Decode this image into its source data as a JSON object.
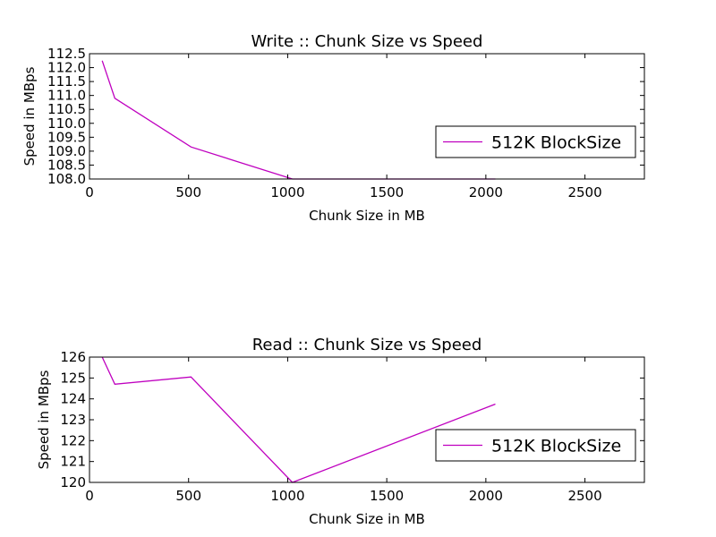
{
  "chart_data": [
    {
      "type": "line",
      "title": "Write :: Chunk Size vs Speed",
      "xlabel": "Chunk Size in MB",
      "ylabel": "Speed in MBps",
      "xlim": [
        0,
        2800
      ],
      "ylim": [
        108.0,
        112.5
      ],
      "xticks": [
        0,
        500,
        1000,
        1500,
        2000,
        2500
      ],
      "xtick_labels": [
        "0",
        "500",
        "1000",
        "1500",
        "2000",
        "2500"
      ],
      "yticks": [
        108.0,
        108.5,
        109.0,
        109.5,
        110.0,
        110.5,
        111.0,
        111.5,
        112.0,
        112.5
      ],
      "ytick_labels": [
        "108.0",
        "108.5",
        "109.0",
        "109.5",
        "110.0",
        "110.5",
        "111.0",
        "111.5",
        "112.0",
        "112.5"
      ],
      "grid": false,
      "legend_position": "right",
      "series": [
        {
          "name": "512K BlockSize",
          "color": "#bf00bf",
          "x": [
            64,
            128,
            512,
            1024,
            2048
          ],
          "y": [
            112.25,
            110.9,
            109.15,
            108.0,
            108.0
          ]
        }
      ]
    },
    {
      "type": "line",
      "title": "Read :: Chunk Size vs Speed",
      "xlabel": "Chunk Size in MB",
      "ylabel": "Speed in MBps",
      "xlim": [
        0,
        2800
      ],
      "ylim": [
        120,
        126
      ],
      "xticks": [
        0,
        500,
        1000,
        1500,
        2000,
        2500
      ],
      "xtick_labels": [
        "0",
        "500",
        "1000",
        "1500",
        "2000",
        "2500"
      ],
      "yticks": [
        120,
        121,
        122,
        123,
        124,
        125,
        126
      ],
      "ytick_labels": [
        "120",
        "121",
        "122",
        "123",
        "124",
        "125",
        "126"
      ],
      "grid": false,
      "legend_position": "right",
      "series": [
        {
          "name": "512K BlockSize",
          "color": "#bf00bf",
          "x": [
            64,
            128,
            512,
            1024,
            2048
          ],
          "y": [
            126.0,
            124.7,
            125.05,
            120.0,
            123.75
          ]
        }
      ]
    }
  ]
}
